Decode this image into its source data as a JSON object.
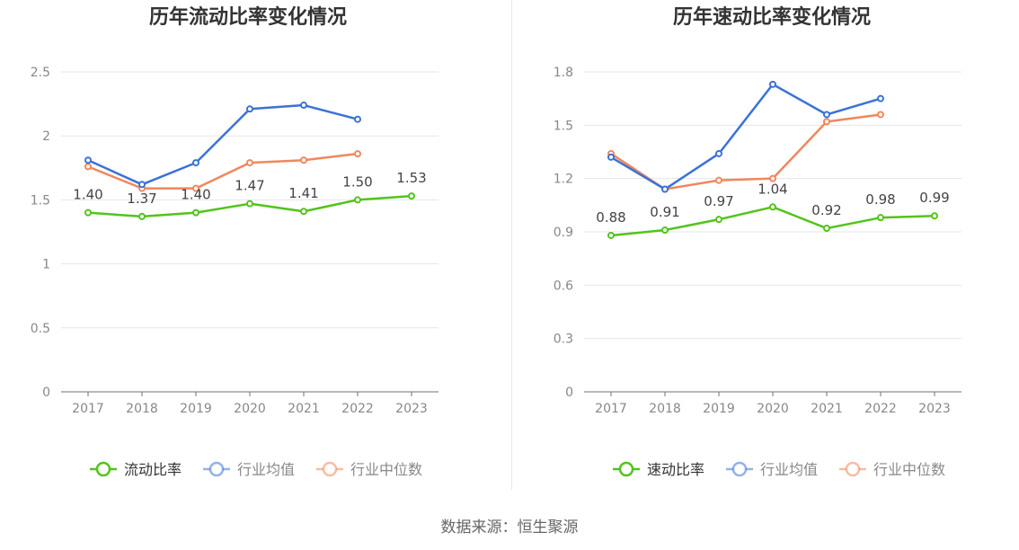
{
  "source_text": "数据来源：恒生聚源",
  "chart_data": [
    {
      "type": "line",
      "title": "历年流动比率变化情况",
      "categories": [
        "2017",
        "2018",
        "2019",
        "2020",
        "2021",
        "2022",
        "2023"
      ],
      "ylim": [
        0,
        2.5
      ],
      "yticks": [
        0,
        0.5,
        1,
        1.5,
        2,
        2.5
      ],
      "ytick_labels": [
        "0",
        "0.5",
        "1",
        "1.5",
        "2",
        "2.5"
      ],
      "grid": true,
      "legend_position": "bottom",
      "series": [
        {
          "name": "流动比率",
          "color": "#52c41a",
          "values": [
            1.4,
            1.37,
            1.4,
            1.47,
            1.41,
            1.5,
            1.53
          ],
          "labels": [
            "1.40",
            "1.37",
            "1.40",
            "1.47",
            "1.41",
            "1.50",
            "1.53"
          ]
        },
        {
          "name": "行业均值",
          "color": "#3a72d8",
          "values": [
            1.81,
            1.62,
            1.79,
            2.21,
            2.24,
            2.13,
            null
          ]
        },
        {
          "name": "行业中位数",
          "color": "#f0875c",
          "values": [
            1.76,
            1.59,
            1.59,
            1.79,
            1.81,
            1.86,
            null
          ]
        }
      ]
    },
    {
      "type": "line",
      "title": "历年速动比率变化情况",
      "categories": [
        "2017",
        "2018",
        "2019",
        "2020",
        "2021",
        "2022",
        "2023"
      ],
      "ylim": [
        0,
        1.8
      ],
      "yticks": [
        0,
        0.3,
        0.6,
        0.9,
        1.2,
        1.5,
        1.8
      ],
      "ytick_labels": [
        "0",
        "0.3",
        "0.6",
        "0.9",
        "1.2",
        "1.5",
        "1.8"
      ],
      "grid": true,
      "legend_position": "bottom",
      "series": [
        {
          "name": "速动比率",
          "color": "#52c41a",
          "values": [
            0.88,
            0.91,
            0.97,
            1.04,
            0.92,
            0.98,
            0.99
          ],
          "labels": [
            "0.88",
            "0.91",
            "0.97",
            "1.04",
            "0.92",
            "0.98",
            "0.99"
          ]
        },
        {
          "name": "行业均值",
          "color": "#3a72d8",
          "values": [
            1.32,
            1.14,
            1.34,
            1.73,
            1.56,
            1.65,
            null
          ]
        },
        {
          "name": "行业中位数",
          "color": "#f0875c",
          "values": [
            1.34,
            1.14,
            1.19,
            1.2,
            1.52,
            1.56,
            null
          ]
        }
      ]
    }
  ]
}
